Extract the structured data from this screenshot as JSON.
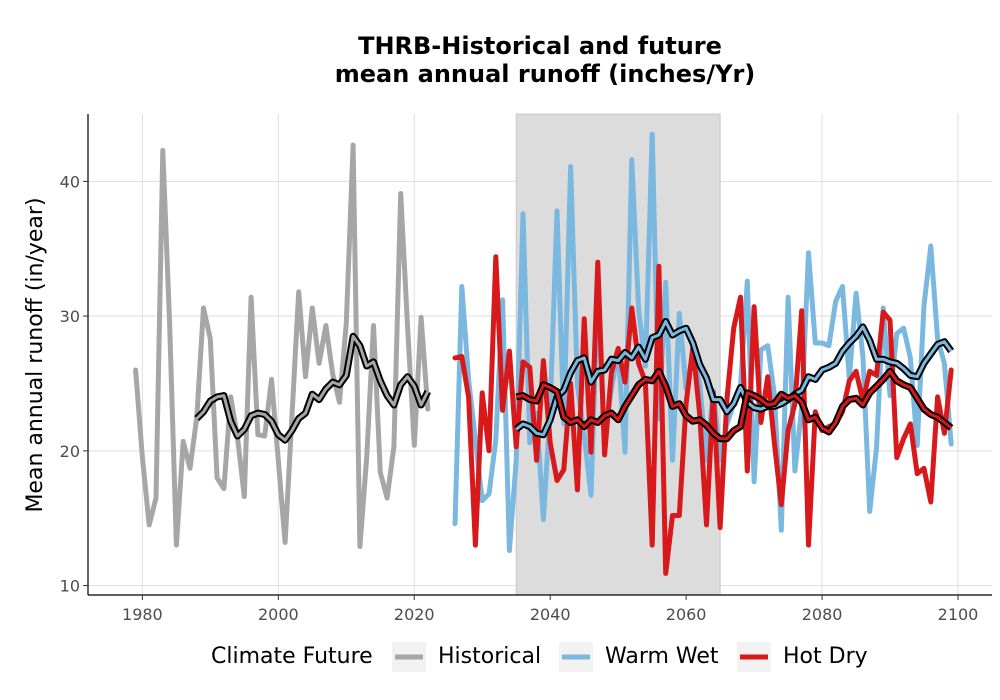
{
  "chart_data": {
    "type": "line",
    "title_line1": "THRB-Historical and future",
    "title_line2": "mean annual runoff (inches/Yr)",
    "xlabel": "",
    "ylabel": "Mean annual runoff (in/year)",
    "xlim": [
      1972,
      2105
    ],
    "ylim": [
      9.3,
      45
    ],
    "x_ticks": [
      1980,
      2000,
      2020,
      2040,
      2060,
      2080,
      2100
    ],
    "y_ticks": [
      10,
      20,
      30,
      40
    ],
    "grid": true,
    "shaded_period": [
      2035,
      2065
    ],
    "legend": {
      "title": "Climate Future",
      "position": "bottom",
      "entries": [
        {
          "label": "Historical",
          "color": "#a6a6a6"
        },
        {
          "label": "Warm Wet",
          "color": "#7ab8e0"
        },
        {
          "label": "Hot Dry",
          "color": "#d7191c"
        }
      ]
    },
    "series": [
      {
        "name": "Historical",
        "color": "#a6a6a6",
        "x": [
          1979,
          1980,
          1981,
          1982,
          1983,
          1984,
          1985,
          1986,
          1987,
          1988,
          1989,
          1990,
          1991,
          1992,
          1993,
          1994,
          1995,
          1996,
          1997,
          1998,
          1999,
          2000,
          2001,
          2002,
          2003,
          2004,
          2005,
          2006,
          2007,
          2008,
          2009,
          2010,
          2011,
          2012,
          2013,
          2014,
          2015,
          2016,
          2017,
          2018,
          2019,
          2020,
          2021,
          2022
        ],
        "values": [
          26,
          19.5,
          14.5,
          16.5,
          42.3,
          29.5,
          13,
          20.7,
          18.7,
          22.5,
          30.6,
          28.3,
          18,
          17.2,
          24,
          21,
          16.6,
          31.4,
          21.2,
          21.1,
          25.3,
          19.3,
          13.2,
          22.5,
          31.8,
          25.5,
          30.6,
          26.5,
          29.3,
          25.7,
          23.6,
          29.5,
          42.7,
          12.9,
          19.5,
          29.3,
          18.4,
          16.5,
          20.3,
          39.1,
          29.3,
          20.4,
          29.9,
          23.1
        ]
      },
      {
        "name": "Historical smoothed",
        "color": "#000000",
        "x": [
          1988,
          1989,
          1990,
          1991,
          1992,
          1993,
          1994,
          1995,
          1996,
          1997,
          1998,
          1999,
          2000,
          2001,
          2002,
          2003,
          2004,
          2005,
          2006,
          2007,
          2008,
          2009,
          2010,
          2011,
          2012,
          2013,
          2014,
          2015,
          2016,
          2017,
          2018,
          2019,
          2020,
          2021,
          2022
        ],
        "values": [
          22.4,
          22.9,
          23.7,
          24,
          24.1,
          22.2,
          21.1,
          21.6,
          22.6,
          22.8,
          22.7,
          22.2,
          21.2,
          20.8,
          21.5,
          22.4,
          22.8,
          24.2,
          23.8,
          24.6,
          25.1,
          24.9,
          25.6,
          28.5,
          27.8,
          26.3,
          26.6,
          25.2,
          24.1,
          23.4,
          24.9,
          25.5,
          24.8,
          23.4,
          24.4
        ]
      },
      {
        "name": "Warm Wet",
        "color": "#7ab8e0",
        "x": [
          2026,
          2027,
          2028,
          2029,
          2030,
          2031,
          2032,
          2033,
          2034,
          2035,
          2036,
          2037,
          2038,
          2039,
          2040,
          2041,
          2042,
          2043,
          2044,
          2045,
          2046,
          2047,
          2048,
          2049,
          2050,
          2051,
          2052,
          2053,
          2054,
          2055,
          2056,
          2057,
          2058,
          2059,
          2060,
          2061,
          2062,
          2063,
          2064,
          2065,
          2066,
          2067,
          2068,
          2069,
          2070,
          2071,
          2072,
          2073,
          2074,
          2075,
          2076,
          2077,
          2078,
          2079,
          2080,
          2081,
          2082,
          2083,
          2084,
          2085,
          2086,
          2087,
          2088,
          2089,
          2090,
          2091,
          2092,
          2093,
          2094,
          2095,
          2096,
          2097,
          2098,
          2099
        ],
        "values": [
          14.6,
          32.2,
          25.3,
          20.8,
          16.3,
          16.8,
          20.8,
          31.2,
          12.6,
          19.3,
          37.6,
          20.6,
          22.8,
          14.9,
          23.1,
          37.8,
          22,
          41.1,
          24.9,
          21.2,
          16.7,
          31.8,
          20.7,
          24.6,
          27.4,
          19.9,
          41.6,
          30.5,
          26.3,
          43.5,
          22.4,
          32.5,
          19.3,
          30.2,
          24.6,
          27.2,
          25,
          19.3,
          24.5,
          19.3,
          22,
          23.5,
          24.8,
          32.6,
          17.7,
          27.5,
          27.8,
          24.1,
          14.1,
          31.4,
          18.5,
          23.2,
          34.7,
          28,
          28,
          27.8,
          31.1,
          32.2,
          25.4,
          31.7,
          27,
          15.5,
          20.2,
          30.6,
          24.1,
          28.7,
          29.1,
          26.9,
          20.4,
          30.8,
          35.2,
          28.3,
          26.5,
          20.5
        ]
      },
      {
        "name": "Warm Wet smoothed",
        "color": "#000000",
        "x": [
          2035,
          2036,
          2037,
          2038,
          2039,
          2040,
          2041,
          2042,
          2043,
          2044,
          2045,
          2046,
          2047,
          2048,
          2049,
          2050,
          2051,
          2052,
          2053,
          2054,
          2055,
          2056,
          2057,
          2058,
          2059,
          2060,
          2061,
          2062,
          2063,
          2064,
          2065,
          2066,
          2067,
          2068,
          2069,
          2070,
          2071,
          2072,
          2073,
          2074,
          2075,
          2076,
          2077,
          2078,
          2079,
          2080,
          2081,
          2082,
          2083,
          2084,
          2085,
          2086,
          2087,
          2088,
          2089,
          2090,
          2091,
          2092,
          2093,
          2094,
          2095,
          2096,
          2097,
          2098,
          2099
        ],
        "values": [
          21.6,
          22,
          21.8,
          21.3,
          21.2,
          22.3,
          24,
          24.5,
          25.8,
          26.7,
          26.9,
          25.1,
          25.9,
          26,
          26.8,
          26.7,
          27.3,
          26.9,
          27.7,
          26.8,
          28.4,
          28.6,
          29.6,
          28.6,
          28.9,
          29.1,
          28,
          26.4,
          25.4,
          23.8,
          23.8,
          22.9,
          23.5,
          24.7,
          23.6,
          23.2,
          23.1,
          23.3,
          23.3,
          23.5,
          23.8,
          24.2,
          24.5,
          25.5,
          25.3,
          26,
          26.2,
          26.5,
          27.4,
          28,
          28.5,
          29.2,
          28.2,
          26.8,
          26.8,
          26.6,
          26.5,
          26.1,
          25.6,
          25.5,
          26.5,
          27.2,
          27.9,
          28.1,
          27.4
        ]
      },
      {
        "name": "Hot Dry",
        "color": "#d7191c",
        "x": [
          2026,
          2027,
          2028,
          2029,
          2030,
          2031,
          2032,
          2033,
          2034,
          2035,
          2036,
          2037,
          2038,
          2039,
          2040,
          2041,
          2042,
          2043,
          2044,
          2045,
          2046,
          2047,
          2048,
          2049,
          2050,
          2051,
          2052,
          2053,
          2054,
          2055,
          2056,
          2057,
          2058,
          2059,
          2060,
          2061,
          2062,
          2063,
          2064,
          2065,
          2066,
          2067,
          2068,
          2069,
          2070,
          2071,
          2072,
          2073,
          2074,
          2075,
          2076,
          2077,
          2078,
          2079,
          2080,
          2081,
          2082,
          2083,
          2084,
          2085,
          2086,
          2087,
          2088,
          2089,
          2090,
          2091,
          2092,
          2093,
          2094,
          2095,
          2096,
          2097,
          2098,
          2099
        ],
        "values": [
          26.9,
          27,
          24,
          13,
          24.3,
          20,
          34.4,
          23,
          27.4,
          20.3,
          26.6,
          26.2,
          19.3,
          26.7,
          20.6,
          17.8,
          18.6,
          25,
          17.1,
          29.8,
          19.9,
          34,
          19.7,
          25.8,
          27.6,
          25.1,
          30.6,
          26.5,
          25.1,
          13,
          33.7,
          10.9,
          15.2,
          15.2,
          23.5,
          27.7,
          22.7,
          14.5,
          24.3,
          14.3,
          23.8,
          29.1,
          31.4,
          18.5,
          30.7,
          22.1,
          25.5,
          20.5,
          16,
          21.5,
          23.5,
          30.4,
          13,
          22.9,
          21.5,
          21.8,
          22,
          22.9,
          25.2,
          25.9,
          23.7,
          25.9,
          25.6,
          30.3,
          29.7,
          19.5,
          20.9,
          22,
          18.3,
          18.7,
          16.2,
          24,
          21.3,
          26
        ]
      },
      {
        "name": "Hot Dry smoothed",
        "color": "#000000",
        "x": [
          2035,
          2036,
          2037,
          2038,
          2039,
          2040,
          2041,
          2042,
          2043,
          2044,
          2045,
          2046,
          2047,
          2048,
          2049,
          2050,
          2051,
          2052,
          2053,
          2054,
          2055,
          2056,
          2057,
          2058,
          2059,
          2060,
          2061,
          2062,
          2063,
          2064,
          2065,
          2066,
          2067,
          2068,
          2069,
          2070,
          2071,
          2072,
          2073,
          2074,
          2075,
          2076,
          2077,
          2078,
          2079,
          2080,
          2081,
          2082,
          2083,
          2084,
          2085,
          2086,
          2087,
          2088,
          2089,
          2090,
          2091,
          2092,
          2093,
          2094,
          2095,
          2096,
          2097,
          2098,
          2099
        ],
        "values": [
          24,
          24.1,
          23.8,
          23.7,
          24.9,
          24.7,
          24.4,
          22.5,
          22.1,
          22.3,
          21.8,
          22.3,
          22.1,
          22.6,
          22.8,
          22.3,
          23.3,
          24.1,
          24.9,
          25.3,
          25.2,
          25.9,
          24.8,
          23.3,
          23.5,
          22.6,
          22.2,
          22.3,
          21.9,
          21.3,
          20.9,
          20.9,
          21.5,
          21.8,
          24.3,
          24.1,
          23.8,
          23.4,
          23.5,
          24.2,
          23.9,
          24.1,
          23.6,
          22.3,
          22.5,
          21.7,
          21.4,
          22.1,
          23.3,
          23.8,
          23.9,
          23.4,
          24.3,
          24.8,
          25.3,
          25.9,
          25.2,
          24.9,
          24.7,
          23.9,
          23.1,
          22.7,
          22.5,
          22.1,
          21.7
        ]
      }
    ]
  }
}
